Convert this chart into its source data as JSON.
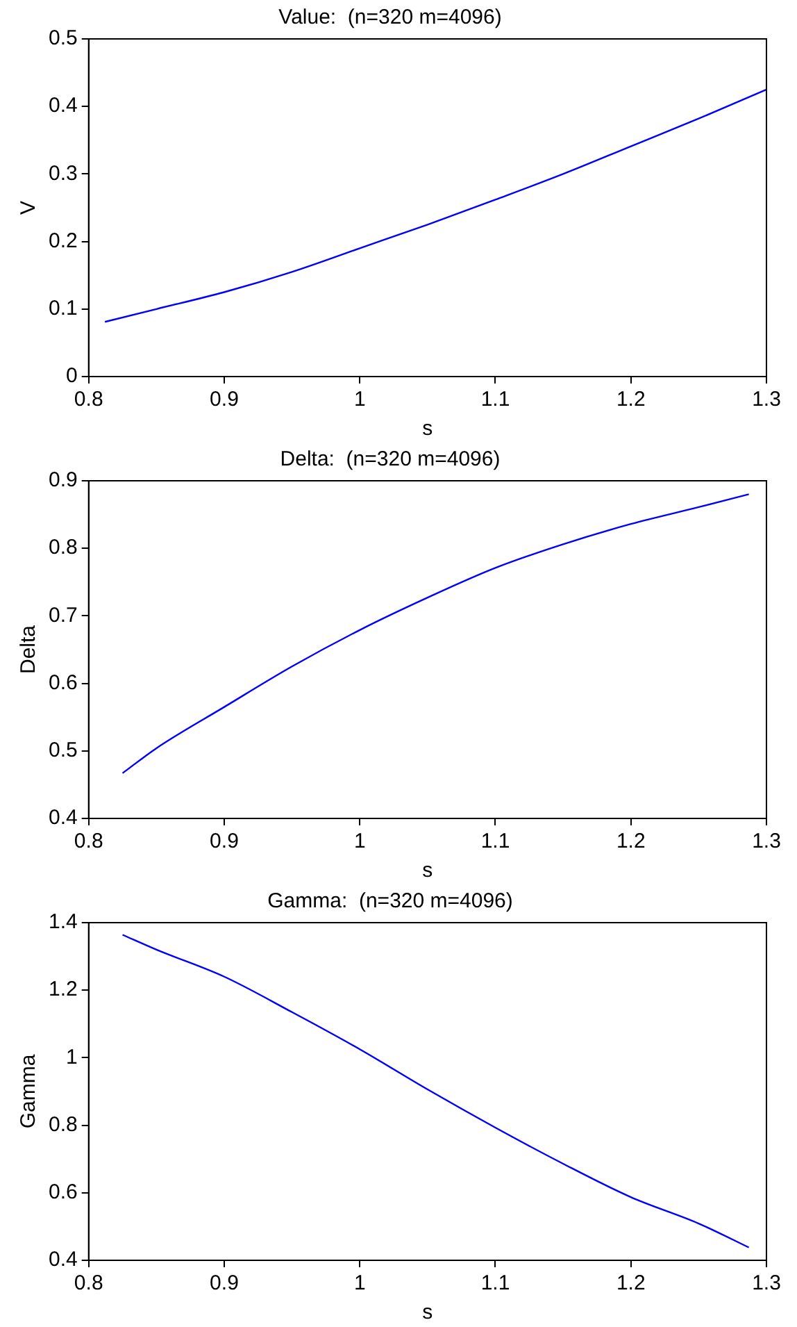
{
  "chart_data": [
    {
      "type": "line",
      "title": "Value:  (n=320 m=4096)",
      "xlabel": "s",
      "ylabel": "V",
      "x": [
        0.812,
        0.85,
        0.9,
        0.95,
        1.0,
        1.05,
        1.1,
        1.15,
        1.2,
        1.25,
        1.3
      ],
      "series": [
        {
          "color": "#0000ff",
          "values": [
            0.081,
            0.1,
            0.125,
            0.155,
            0.19,
            0.225,
            0.262,
            0.3,
            0.341,
            0.382,
            0.425
          ]
        }
      ],
      "xlim": [
        0.8,
        1.3
      ],
      "xticks": [
        0.8,
        0.9,
        1,
        1.1,
        1.2,
        1.3
      ],
      "ylim": [
        0,
        0.5
      ],
      "yticks": [
        0,
        0.1,
        0.2,
        0.3,
        0.4,
        0.5
      ],
      "grid": false,
      "legend": false,
      "marker": "none",
      "line_style": "solid"
    },
    {
      "type": "line",
      "title": "Delta:  (n=320 m=4096)",
      "xlabel": "s",
      "ylabel": "Delta",
      "x": [
        0.825,
        0.85,
        0.9,
        0.95,
        1.0,
        1.05,
        1.1,
        1.15,
        1.2,
        1.25,
        1.287
      ],
      "series": [
        {
          "color": "#0000ff",
          "values": [
            0.467,
            0.504,
            0.565,
            0.625,
            0.679,
            0.727,
            0.771,
            0.806,
            0.836,
            0.861,
            0.88
          ]
        }
      ],
      "xlim": [
        0.8,
        1.3
      ],
      "xticks": [
        0.8,
        0.9,
        1,
        1.1,
        1.2,
        1.3
      ],
      "ylim": [
        0.4,
        0.9
      ],
      "yticks": [
        0.4,
        0.5,
        0.6,
        0.7,
        0.8,
        0.9
      ],
      "grid": false,
      "legend": false,
      "marker": "none",
      "line_style": "solid"
    },
    {
      "type": "line",
      "title": "Gamma:  (n=320 m=4096)",
      "xlabel": "s",
      "ylabel": "Gamma",
      "x": [
        0.825,
        0.85,
        0.9,
        0.95,
        1.0,
        1.05,
        1.1,
        1.15,
        1.2,
        1.25,
        1.287
      ],
      "series": [
        {
          "color": "#0000ff",
          "values": [
            1.364,
            1.32,
            1.24,
            1.135,
            1.025,
            0.906,
            0.793,
            0.686,
            0.587,
            0.509,
            0.438
          ]
        }
      ],
      "xlim": [
        0.8,
        1.3
      ],
      "xticks": [
        0.8,
        0.9,
        1,
        1.1,
        1.2,
        1.3
      ],
      "ylim": [
        0.4,
        1.4
      ],
      "yticks": [
        0.4,
        0.6,
        0.8,
        1,
        1.2,
        1.4
      ],
      "grid": false,
      "legend": false,
      "marker": "none",
      "line_style": "solid"
    }
  ]
}
